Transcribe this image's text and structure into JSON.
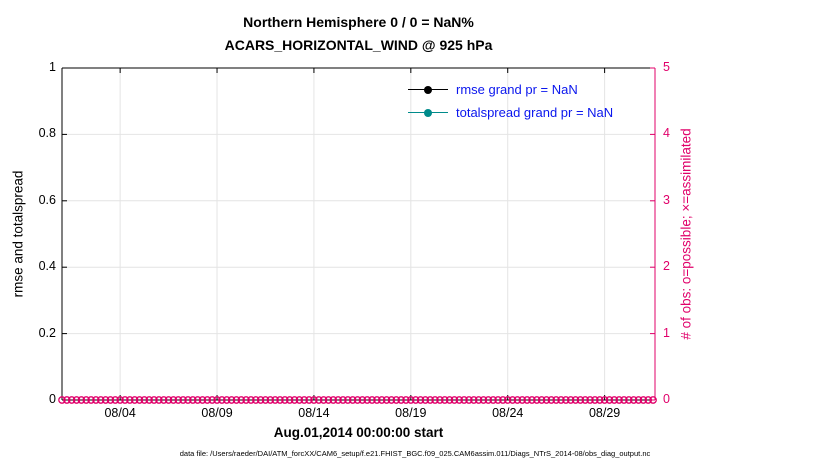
{
  "title": {
    "line1": "Northern Hemisphere 0 / 0 = NaN%",
    "line2": "ACARS_HORIZONTAL_WIND @ 925 hPa"
  },
  "legend": [
    {
      "label": "rmse grand pr = NaN",
      "color": "#000000"
    },
    {
      "label": "totalspread grand pr = NaN",
      "color": "#008b8b"
    }
  ],
  "colors": {
    "obs_axis": "#e0006a",
    "legend_text": "#0a16ee",
    "grid": "#e4e4e4",
    "axis": "#000000"
  },
  "axes": {
    "left": {
      "label": "rmse and totalspread",
      "ticks": [
        "0",
        "0.2",
        "0.4",
        "0.6",
        "0.8",
        "1"
      ],
      "range": [
        0,
        1
      ]
    },
    "right": {
      "label": "# of obs: o=possible; ×=assimilated",
      "ticks": [
        "0",
        "1",
        "2",
        "3",
        "4",
        "5"
      ],
      "range": [
        0,
        5
      ]
    },
    "x": {
      "label": "Aug.01,2014 00:00:00 start",
      "ticks": [
        "08/04",
        "08/09",
        "08/14",
        "08/19",
        "08/24",
        "08/29"
      ],
      "tick_days": [
        4,
        9,
        14,
        19,
        24,
        29
      ],
      "range_days": [
        1,
        31.6
      ]
    }
  },
  "footer": "data file: /Users/raeder/DAI/ATM_forcXX/CAM6_setup/f.e21.FHIST_BGC.f09_025.CAM6assim.011/Diags_NTrS_2014-08/obs_diag_output.nc",
  "chart_data": {
    "type": "line",
    "title": "Northern Hemisphere 0 / 0 = NaN%",
    "subtitle": "ACARS_HORIZONTAL_WIND @ 925 hPa",
    "xlabel": "Aug.01,2014 00:00:00 start",
    "ylabel_left": "rmse and totalspread",
    "ylabel_right": "# of obs: o=possible; ×=assimilated",
    "ylim_left": [
      0,
      1
    ],
    "ylim_right": [
      0,
      5
    ],
    "x_tick_labels": [
      "08/04",
      "08/09",
      "08/14",
      "08/19",
      "08/24",
      "08/29"
    ],
    "grid": true,
    "legend_position": "top-right-inside",
    "series": [
      {
        "name": "rmse grand pr = NaN",
        "axis": "left",
        "color": "#000000",
        "marker": "filled-circle",
        "values": [],
        "note": "all values NaN — no line drawn"
      },
      {
        "name": "totalspread grand pr = NaN",
        "axis": "left",
        "color": "#008b8b",
        "marker": "filled-circle",
        "values": [],
        "note": "all values NaN — no line drawn"
      },
      {
        "name": "observations possible (o)",
        "axis": "right",
        "color": "#e0006a",
        "marker": "open-circle",
        "constant_value": 0,
        "x_start_day": 1,
        "x_end_day": 31.5,
        "x_interval_days": 0.25,
        "note": "row of open circles at y=0 along entire x-axis"
      }
    ]
  }
}
